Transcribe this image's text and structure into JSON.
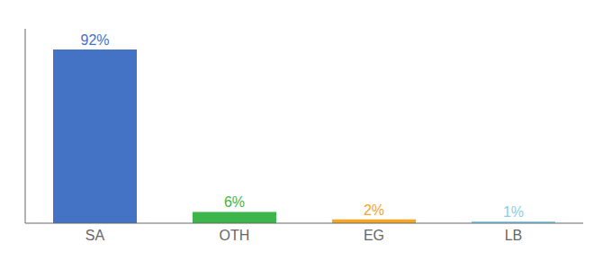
{
  "chart_data": {
    "type": "bar",
    "categories": [
      "SA",
      "OTH",
      "EG",
      "LB"
    ],
    "values": [
      92,
      6,
      2,
      1
    ],
    "value_labels": [
      "92%",
      "6%",
      "2%",
      "1%"
    ],
    "colors": [
      "#4472c4",
      "#3cb54a",
      "#f5a623",
      "#87ceeb"
    ],
    "ylim": [
      0,
      103
    ],
    "data_labels": true,
    "tick_labels": "x"
  }
}
